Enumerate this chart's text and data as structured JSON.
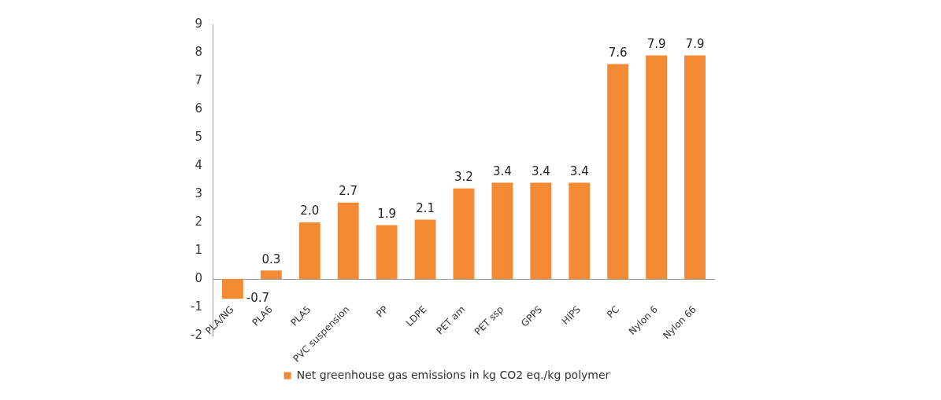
{
  "chart_data": {
    "type": "bar",
    "categories": [
      "PLA/NG",
      "PLA6",
      "PLA5",
      "PVC suspension",
      "PP",
      "LDPE",
      "PET am",
      "PET ssp",
      "GPPS",
      "HIPS",
      "PC",
      "Nylon 6",
      "Nylon 66"
    ],
    "series": [
      {
        "name": "Net greenhouse gas emissions in kg CO2 eq./kg polymer",
        "color": "#f58a34",
        "values": [
          -0.7,
          0.3,
          2.0,
          2.7,
          1.9,
          2.1,
          3.2,
          3.4,
          3.4,
          3.4,
          7.6,
          7.9,
          7.9
        ]
      }
    ],
    "value_labels": [
      "-0.7",
      "0.3",
      "2.0",
      "2.7",
      "1.9",
      "2.1",
      "3.2",
      "3.4",
      "3.4",
      "3.4",
      "7.6",
      "7.9",
      "7.9"
    ],
    "ylim": [
      -2,
      9
    ],
    "yticks": [
      -2,
      -1,
      0,
      1,
      2,
      3,
      4,
      5,
      6,
      7,
      8,
      9
    ],
    "grid": false,
    "legend": "bottom"
  }
}
